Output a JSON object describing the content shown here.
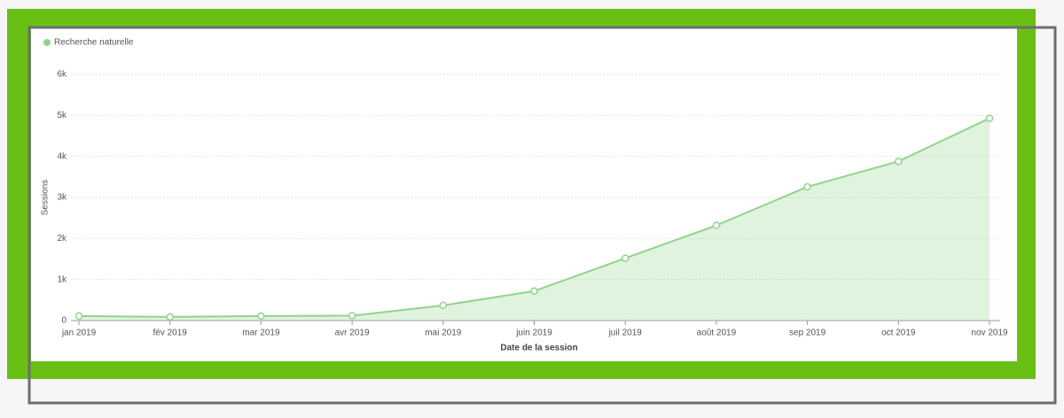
{
  "chart_data": {
    "type": "area",
    "legend": "Recherche naturelle",
    "ylabel": "Sessions",
    "xlabel": "Date de la session",
    "categories": [
      "jan 2019",
      "fév 2019",
      "mar 2019",
      "avr 2019",
      "mai 2019",
      "juin 2019",
      "juil 2019",
      "août 2019",
      "sep 2019",
      "oct 2019",
      "nov 2019"
    ],
    "series": [
      {
        "name": "Recherche naturelle",
        "color": "#8fd58a",
        "values": [
          110,
          90,
          110,
          120,
          370,
          720,
          1520,
          2320,
          3260,
          3880,
          4930
        ]
      }
    ],
    "ylim": [
      0,
      6000
    ],
    "yticks": [
      0,
      {
        "value": 1000,
        "label": "1k"
      },
      {
        "value": 2000,
        "label": "2k"
      },
      {
        "value": 3000,
        "label": "3k"
      },
      {
        "value": 4000,
        "label": "4k"
      },
      {
        "value": 5000,
        "label": "5k"
      },
      {
        "value": 6000,
        "label": "6k"
      }
    ],
    "grid": true
  }
}
